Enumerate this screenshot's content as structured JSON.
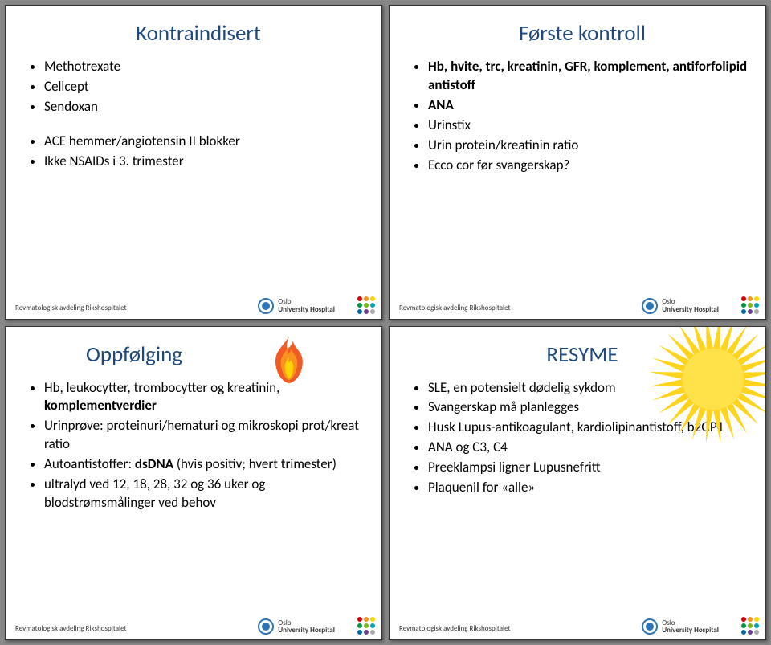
{
  "footer": "Revmatologisk avdeling Rikshospitalet",
  "logo": {
    "line1": "Oslo",
    "line2": "University Hospital"
  },
  "dot_colors": [
    "#d60000",
    "#f7931e",
    "#ffd400",
    "#00963f",
    "#7ab51d",
    "#00a5b5",
    "#0069a5",
    "#6a3f97",
    "#aaaaaa"
  ],
  "slide1": {
    "title": "Kontraindisert",
    "groupA": [
      "Methotrexate",
      "Cellcept",
      "Sendoxan"
    ],
    "groupB": [
      "ACE hemmer/angiotensin II blokker",
      "Ikke NSAIDs i 3. trimester"
    ]
  },
  "slide2": {
    "title": "Første kontroll",
    "items": [
      {
        "text": "Hb, hvite, trc, kreatinin, GFR, komplement, antiforfolipid antistoff",
        "bold": true
      },
      {
        "text": "ANA",
        "bold": true
      },
      {
        "text": "Urinstix",
        "bold": false
      },
      {
        "text": "Urin protein/kreatinin ratio",
        "bold": false
      },
      {
        "text": "Ecco cor før svangerskap?",
        "bold": false
      }
    ]
  },
  "slide3": {
    "title": "Oppfølging",
    "items": [
      {
        "pre": "Hb, leukocytter, trombocytter og kreatinin, ",
        "bold": "komplementverdier"
      },
      {
        "text": "Urinprøve: proteinuri/hematuri og mikroskopi prot/kreat ratio"
      },
      {
        "pre": "Autoantistoffer: ",
        "bold": "dsDNA",
        "post": " (hvis positiv; hvert trimester)"
      },
      {
        "text": "ultralyd ved 12, 18, 28, 32 og 36 uker og blodstrømsmålinger ved behov"
      }
    ],
    "flame": {
      "outer": "#f15a24",
      "mid": "#f7931e",
      "inner": "#ffd400"
    }
  },
  "slide4": {
    "title": "RESYME",
    "items": [
      "SLE, en potensielt dødelig sykdom",
      "Svangerskap må planlegges",
      "Husk Lupus-antikoagulant, kardiolipinantistoff, b2GP1",
      "ANA og C3, C4",
      "Preeklampsi ligner Lupusnefritt",
      "Plaquenil for «alle»"
    ],
    "sun": {
      "fill": "#ffe24a",
      "rays": "#ffd41f"
    }
  }
}
